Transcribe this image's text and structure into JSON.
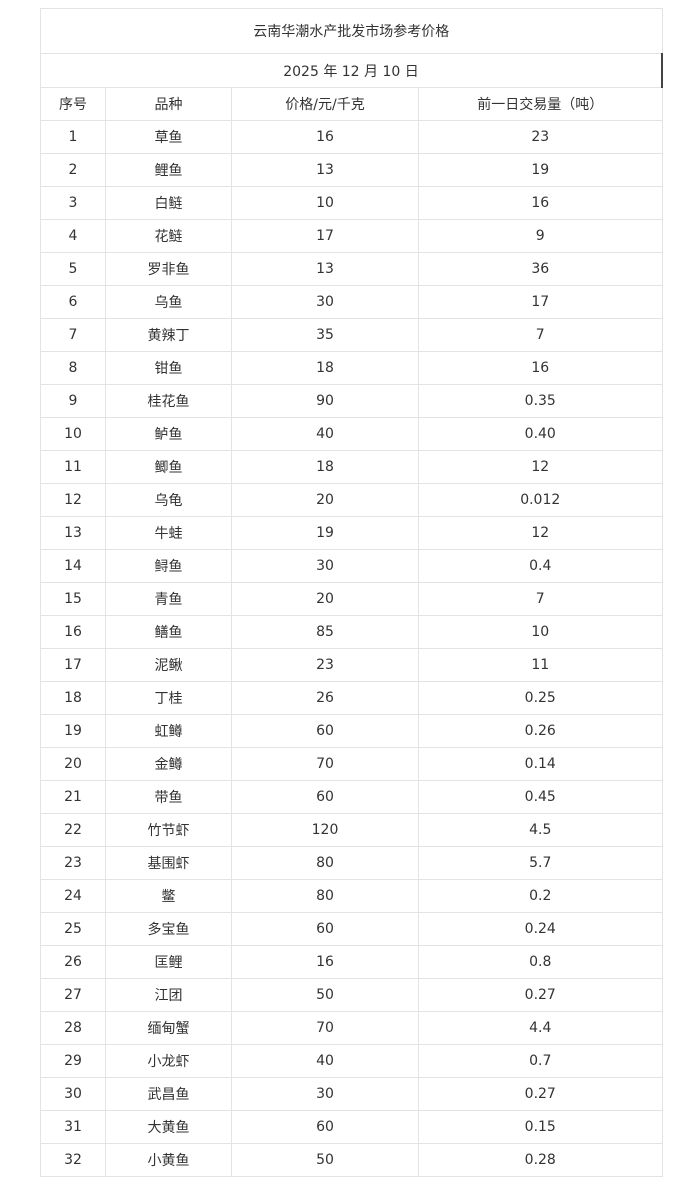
{
  "title": "云南华潮水产批发市场参考价格",
  "date": "2025 年 12 月 10 日",
  "headers": [
    "序号",
    "品种",
    "价格/元/千克",
    "前一日交易量（吨）"
  ],
  "rows": [
    [
      "1",
      "草鱼",
      "16",
      "23"
    ],
    [
      "2",
      "鲤鱼",
      "13",
      "19"
    ],
    [
      "3",
      "白鲢",
      "10",
      "16"
    ],
    [
      "4",
      "花鲢",
      "17",
      "9"
    ],
    [
      "5",
      "罗非鱼",
      "13",
      "36"
    ],
    [
      "6",
      "乌鱼",
      "30",
      "17"
    ],
    [
      "7",
      "黄辣丁",
      "35",
      "7"
    ],
    [
      "8",
      "钳鱼",
      "18",
      "16"
    ],
    [
      "9",
      "桂花鱼",
      "90",
      "0.35"
    ],
    [
      "10",
      "鲈鱼",
      "40",
      "0.40"
    ],
    [
      "11",
      "鲫鱼",
      "18",
      "12"
    ],
    [
      "12",
      "乌龟",
      "20",
      "0.012"
    ],
    [
      "13",
      "牛蛙",
      "19",
      "12"
    ],
    [
      "14",
      "鲟鱼",
      "30",
      "0.4"
    ],
    [
      "15",
      "青鱼",
      "20",
      "7"
    ],
    [
      "16",
      "鳝鱼",
      "85",
      "10"
    ],
    [
      "17",
      "泥鳅",
      "23",
      "11"
    ],
    [
      "18",
      "丁桂",
      "26",
      "0.25"
    ],
    [
      "19",
      "虹鳟",
      "60",
      "0.26"
    ],
    [
      "20",
      "金鳟",
      "70",
      "0.14"
    ],
    [
      "21",
      "带鱼",
      "60",
      "0.45"
    ],
    [
      "22",
      "竹节虾",
      "120",
      "4.5"
    ],
    [
      "23",
      "基围虾",
      "80",
      "5.7"
    ],
    [
      "24",
      "鳖",
      "80",
      "0.2"
    ],
    [
      "25",
      "多宝鱼",
      "60",
      "0.24"
    ],
    [
      "26",
      "匡鲤",
      "16",
      "0.8"
    ],
    [
      "27",
      "江团",
      "50",
      "0.27"
    ],
    [
      "28",
      "缅甸蟹",
      "70",
      "4.4"
    ],
    [
      "29",
      "小龙虾",
      "40",
      "0.7"
    ],
    [
      "30",
      "武昌鱼",
      "30",
      "0.27"
    ],
    [
      "31",
      "大黄鱼",
      "60",
      "0.15"
    ],
    [
      "32",
      "小黄鱼",
      "50",
      "0.28"
    ]
  ]
}
